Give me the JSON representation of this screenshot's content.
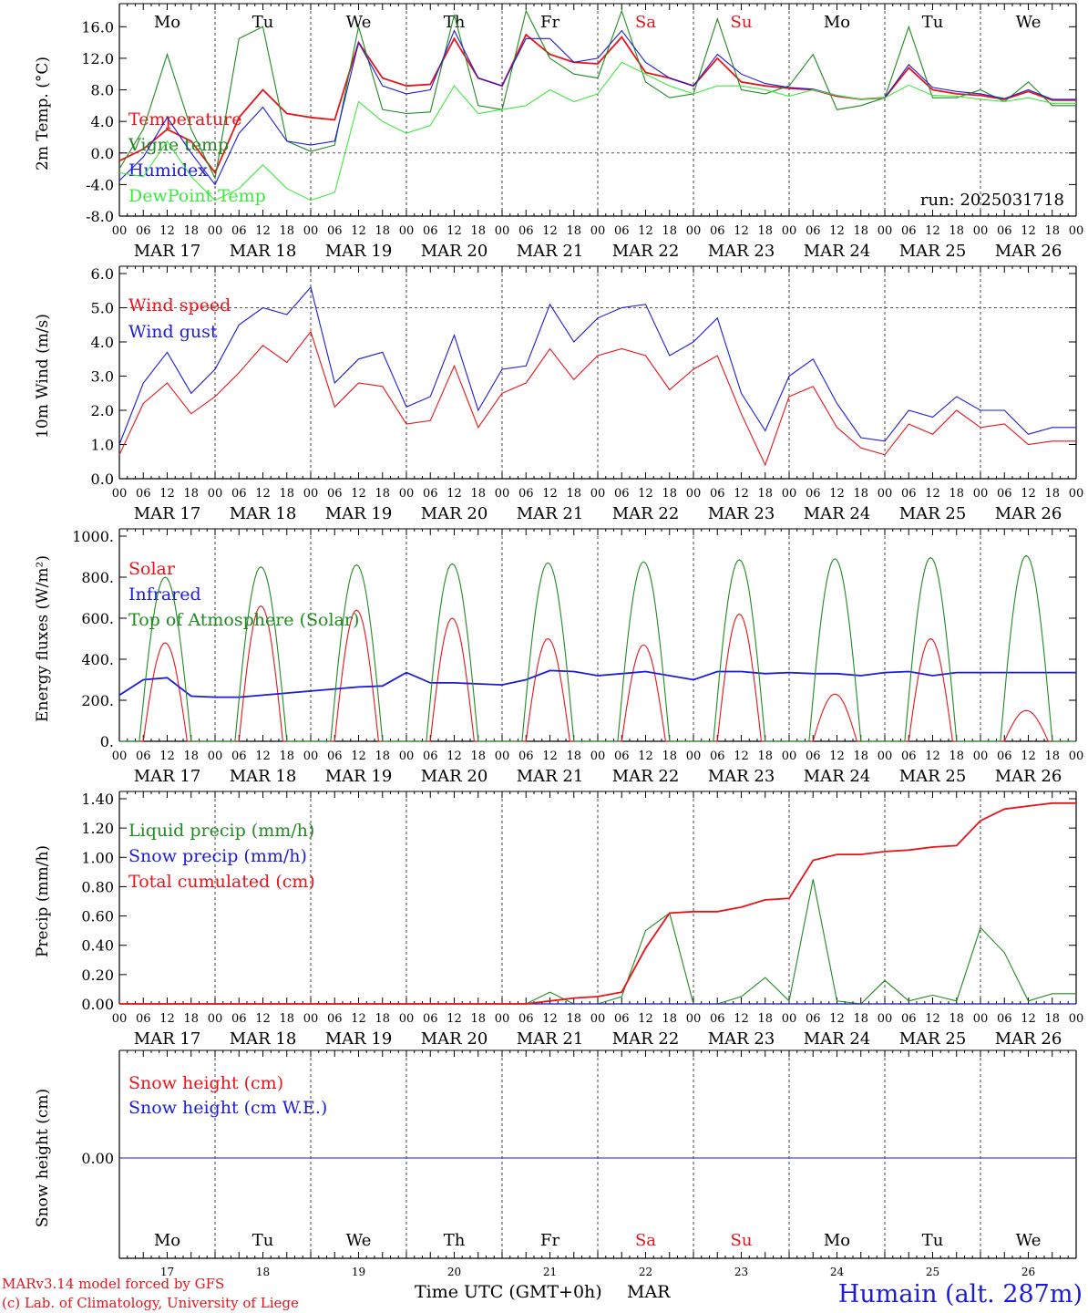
{
  "colors": {
    "red": "#e8141a",
    "green": "#1f8a1f",
    "blue": "#1c1cd6",
    "lightgreen": "#3ee83e",
    "axis": "#000000"
  },
  "x_axis": {
    "hour_ticks": [
      "00",
      "06",
      "12",
      "18"
    ],
    "day_labels": [
      "MAR 17",
      "MAR 18",
      "MAR 19",
      "MAR 20",
      "MAR 21",
      "MAR 22",
      "MAR 23",
      "MAR 24",
      "MAR 25",
      "MAR 26"
    ],
    "weekday_labels": [
      "Mo",
      "Tu",
      "We",
      "Th",
      "Fr",
      "Sa",
      "Su",
      "Mo",
      "Tu",
      "We"
    ],
    "weekday_colors": [
      "#000000",
      "#000000",
      "#000000",
      "#000000",
      "#000000",
      "#e8141a",
      "#e8141a",
      "#000000",
      "#000000",
      "#000000"
    ],
    "bottom_days": [
      "17",
      "18",
      "19",
      "20",
      "21",
      "22",
      "23",
      "24",
      "25",
      "26"
    ],
    "bottom_weekdays": [
      "Mo",
      "Tu",
      "We",
      "Th",
      "Fr",
      "Sa",
      "Su",
      "Mo",
      "Tu",
      "We"
    ],
    "xlabel": "Time UTC (GMT+0h)",
    "month": "MAR"
  },
  "footer": {
    "model_line": "MARv3.14 model forced by GFS",
    "credit_line": "(c) Lab. of Climatology, University of Liege",
    "station": "Humain (alt. 287m)"
  },
  "chart_data": [
    {
      "id": "temp",
      "type": "line",
      "ylabel": "2m Temp. (°C)",
      "ylim": [
        -8,
        18
      ],
      "yticks": [
        -8,
        -4,
        0,
        4,
        8,
        12,
        16
      ],
      "ytick_labels": [
        "-8.0",
        "-4.0",
        "0.0",
        "4.0",
        "8.0",
        "12.0",
        "16.0"
      ],
      "annotation": "run: 2025031718",
      "hours": [
        0,
        6,
        12,
        18,
        24,
        30,
        36,
        42,
        48,
        54,
        60,
        66,
        72,
        78,
        84,
        90,
        96,
        102,
        108,
        114,
        120,
        126,
        132,
        138,
        144,
        150,
        156,
        162,
        168,
        174,
        180,
        186,
        192,
        198,
        204,
        210,
        216,
        222,
        228,
        234
      ],
      "series": [
        {
          "name": "Temperature",
          "color": "#e8141a",
          "values": [
            -1.0,
            0.5,
            3.0,
            1.5,
            -2.5,
            4.5,
            8.0,
            5.0,
            4.5,
            4.2,
            14.0,
            9.5,
            8.5,
            8.7,
            14.5,
            9.5,
            8.5,
            15.0,
            12.5,
            11.5,
            11.3,
            14.7,
            10.2,
            9.5,
            8.5,
            12.0,
            9.0,
            8.5,
            8.2,
            8.0,
            7.2,
            6.8,
            7.0,
            10.8,
            8.0,
            7.5,
            7.3,
            6.8,
            7.8,
            6.7
          ]
        },
        {
          "name": "Vigne temp",
          "color": "#1f8a1f",
          "values": [
            -2.0,
            3.0,
            12.5,
            3.0,
            -3.2,
            14.5,
            16.0,
            1.5,
            0.2,
            1.0,
            16.0,
            5.5,
            5.0,
            5.2,
            17.5,
            6.0,
            5.5,
            18.0,
            12.0,
            10.0,
            9.5,
            18.0,
            9.0,
            7.0,
            7.5,
            17.0,
            8.0,
            7.5,
            8.5,
            12.5,
            5.5,
            6.0,
            7.0,
            16.0,
            7.0,
            7.0,
            8.0,
            6.5,
            9.0,
            6.0
          ]
        },
        {
          "name": "Humidex",
          "color": "#1c1cd6",
          "values": [
            -3.5,
            -0.5,
            4.5,
            0.0,
            -4.0,
            2.5,
            5.8,
            1.5,
            1.0,
            1.5,
            14.0,
            8.5,
            7.5,
            8.0,
            15.5,
            9.5,
            8.5,
            14.5,
            14.5,
            11.5,
            12.0,
            15.5,
            11.5,
            9.5,
            8.5,
            12.5,
            10.0,
            8.8,
            8.3,
            8.1,
            7.3,
            6.8,
            7.0,
            11.2,
            8.3,
            7.8,
            7.5,
            6.9,
            8.0,
            6.8
          ]
        },
        {
          "name": "DewPoint Temp",
          "color": "#3ee83e",
          "values": [
            -2.5,
            -3.0,
            1.5,
            -3.0,
            -6.0,
            -4.5,
            -1.5,
            -4.5,
            -6.0,
            -5.0,
            6.5,
            4.0,
            2.5,
            3.5,
            8.5,
            5.0,
            5.5,
            6.0,
            8.0,
            6.5,
            7.5,
            11.5,
            10.0,
            8.5,
            7.5,
            8.5,
            8.5,
            8.0,
            7.2,
            8.0,
            7.3,
            6.8,
            7.0,
            8.6,
            7.3,
            7.2,
            6.8,
            6.5,
            7.0,
            6.3
          ]
        }
      ]
    },
    {
      "id": "wind",
      "type": "line",
      "ylabel": "10m Wind (m/s)",
      "ylim": [
        0,
        6
      ],
      "yticks": [
        0,
        1,
        2,
        3,
        4,
        5,
        6
      ],
      "ytick_labels": [
        "0.0",
        "1.0",
        "2.0",
        "3.0",
        "4.0",
        "5.0",
        "6.0"
      ],
      "hours": [
        0,
        6,
        12,
        18,
        24,
        30,
        36,
        42,
        48,
        54,
        60,
        66,
        72,
        78,
        84,
        90,
        96,
        102,
        108,
        114,
        120,
        126,
        132,
        138,
        144,
        150,
        156,
        162,
        168,
        174,
        180,
        186,
        192,
        198,
        204,
        210,
        216,
        222,
        228,
        234
      ],
      "series": [
        {
          "name": "Wind speed",
          "color": "#e8141a",
          "values": [
            0.7,
            2.2,
            2.8,
            1.9,
            2.4,
            3.1,
            3.9,
            3.4,
            4.3,
            2.1,
            2.8,
            2.7,
            1.6,
            1.7,
            3.3,
            1.5,
            2.5,
            2.8,
            3.8,
            2.9,
            3.6,
            3.8,
            3.6,
            2.6,
            3.2,
            3.6,
            1.9,
            0.4,
            2.4,
            2.7,
            1.5,
            0.9,
            0.7,
            1.6,
            1.3,
            2.0,
            1.5,
            1.6,
            1.0,
            1.1
          ]
        },
        {
          "name": "Wind gust",
          "color": "#1c1cd6",
          "values": [
            1.0,
            2.8,
            3.7,
            2.5,
            3.2,
            4.5,
            5.0,
            4.8,
            5.6,
            2.8,
            3.5,
            3.7,
            2.1,
            2.4,
            4.2,
            2.0,
            3.2,
            3.3,
            5.1,
            4.0,
            4.7,
            5.0,
            5.1,
            3.6,
            4.0,
            4.7,
            2.5,
            1.4,
            3.0,
            3.5,
            2.2,
            1.2,
            1.1,
            2.0,
            1.8,
            2.4,
            2.0,
            2.0,
            1.3,
            1.5
          ]
        }
      ]
    },
    {
      "id": "energy",
      "type": "line",
      "ylabel": "Energy fluxes (W/m²)",
      "ylim": [
        0,
        1000
      ],
      "yticks": [
        0,
        200,
        400,
        600,
        800,
        1000
      ],
      "ytick_labels": [
        "0.",
        "200.",
        "400.",
        "600.",
        "800.",
        "1000."
      ],
      "hours": [
        0,
        6,
        12,
        18,
        24,
        30,
        36,
        42,
        48,
        54,
        60,
        66,
        72,
        78,
        84,
        90,
        96,
        102,
        108,
        114,
        120,
        126,
        132,
        138,
        144,
        150,
        156,
        162,
        168,
        174,
        180,
        186,
        192,
        198,
        204,
        210,
        216,
        222,
        228,
        234
      ],
      "series": [
        {
          "name": "Solar",
          "color": "#e8141a",
          "values": [
            0,
            0,
            480,
            0,
            0,
            0,
            660,
            0,
            0,
            0,
            640,
            0,
            0,
            0,
            600,
            0,
            0,
            0,
            500,
            0,
            0,
            0,
            470,
            0,
            0,
            0,
            620,
            0,
            0,
            0,
            230,
            0,
            0,
            0,
            500,
            0,
            0,
            0,
            150,
            0
          ]
        },
        {
          "name": "Infrared",
          "color": "#1c1cd6",
          "values": [
            225,
            300,
            310,
            220,
            215,
            215,
            225,
            235,
            245,
            255,
            265,
            270,
            335,
            285,
            285,
            280,
            275,
            300,
            345,
            340,
            320,
            330,
            340,
            320,
            300,
            340,
            340,
            330,
            335,
            330,
            330,
            320,
            335,
            340,
            320,
            335,
            335,
            335,
            335,
            335
          ]
        },
        {
          "name": "Top of Atmosphere (Solar)",
          "color": "#1f8a1f",
          "values": [
            0,
            40,
            800,
            40,
            0,
            40,
            850,
            40,
            0,
            40,
            860,
            40,
            0,
            40,
            865,
            40,
            0,
            40,
            870,
            40,
            0,
            40,
            875,
            40,
            0,
            40,
            885,
            40,
            0,
            40,
            890,
            40,
            0,
            40,
            895,
            40,
            0,
            40,
            905,
            40
          ]
        }
      ]
    },
    {
      "id": "precip",
      "type": "line",
      "ylabel": "Precip (mm/h)",
      "ylim": [
        0,
        1.4
      ],
      "yticks": [
        0,
        0.2,
        0.4,
        0.6,
        0.8,
        1.0,
        1.2,
        1.4
      ],
      "ytick_labels": [
        "0.00",
        "0.20",
        "0.40",
        "0.60",
        "0.80",
        "1.00",
        "1.20",
        "1.40"
      ],
      "hours": [
        0,
        6,
        12,
        18,
        24,
        30,
        36,
        42,
        48,
        54,
        60,
        66,
        72,
        78,
        84,
        90,
        96,
        102,
        108,
        114,
        120,
        126,
        132,
        138,
        144,
        150,
        156,
        162,
        168,
        174,
        180,
        186,
        192,
        198,
        204,
        210,
        216,
        222,
        228,
        234
      ],
      "series": [
        {
          "name": "Liquid precip (mm/h)",
          "color": "#1f8a1f",
          "values": [
            0,
            0,
            0,
            0,
            0,
            0,
            0,
            0,
            0,
            0,
            0,
            0,
            0,
            0,
            0,
            0,
            0,
            0,
            0.08,
            0,
            0,
            0.05,
            0.5,
            0.62,
            0,
            0,
            0.05,
            0.18,
            0.02,
            0.85,
            0.02,
            0,
            0.16,
            0.02,
            0.06,
            0.02,
            0.52,
            0.35,
            0.02,
            0.07
          ]
        },
        {
          "name": "Snow precip (mm/h)",
          "color": "#1c1cd6",
          "values": [
            0,
            0,
            0,
            0,
            0,
            0,
            0,
            0,
            0,
            0,
            0,
            0,
            0,
            0,
            0,
            0,
            0,
            0,
            0,
            0,
            0,
            0,
            0,
            0,
            0,
            0,
            0,
            0,
            0,
            0,
            0,
            0,
            0,
            0,
            0,
            0,
            0,
            0,
            0,
            0
          ]
        },
        {
          "name": "Total cumulated (cm)",
          "color": "#e8141a",
          "values": [
            0,
            0,
            0,
            0,
            0,
            0,
            0,
            0,
            0,
            0,
            0,
            0,
            0,
            0,
            0,
            0,
            0,
            0,
            0.02,
            0.04,
            0.05,
            0.08,
            0.38,
            0.62,
            0.63,
            0.63,
            0.66,
            0.71,
            0.72,
            0.98,
            1.02,
            1.02,
            1.04,
            1.05,
            1.07,
            1.08,
            1.25,
            1.33,
            1.35,
            1.37
          ]
        }
      ]
    },
    {
      "id": "snow",
      "type": "line",
      "ylabel": "Snow height (cm)",
      "ylim": [
        -1,
        1
      ],
      "yticks": [
        0
      ],
      "ytick_labels": [
        "0.00"
      ],
      "hours": [
        0,
        240
      ],
      "series": [
        {
          "name": "Snow height (cm)",
          "color": "#e8141a",
          "values": [
            0,
            0
          ]
        },
        {
          "name": "Snow height (cm W.E.)",
          "color": "#1c1cd6",
          "values": [
            0,
            0
          ]
        }
      ]
    }
  ]
}
